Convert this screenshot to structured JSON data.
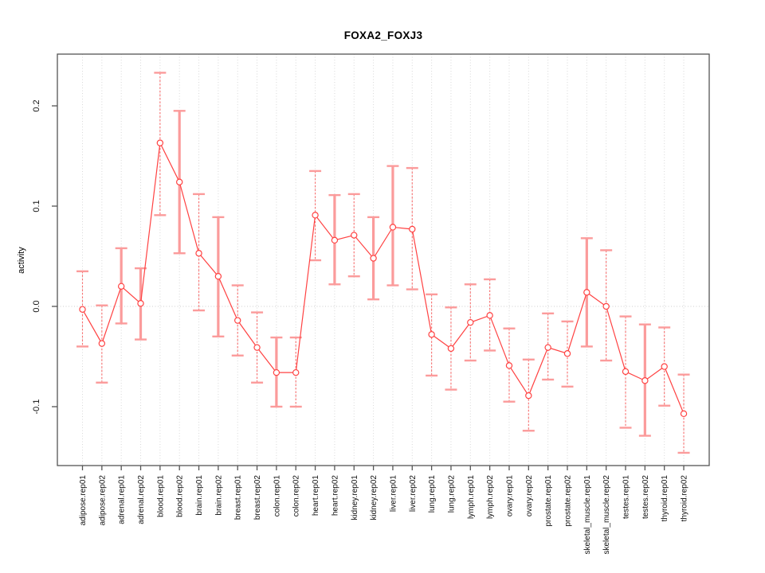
{
  "chart_data": {
    "type": "line",
    "title": "FOXA2_FOXJ3",
    "xlabel": "",
    "ylabel": "activity",
    "ylim": [
      -0.16,
      0.252
    ],
    "yticks": [
      -0.1,
      0.0,
      0.1,
      0.2
    ],
    "ytick_labels": [
      "-0.1",
      "0.0",
      "0.1",
      "0.2"
    ],
    "grid": "vertical dotted gridline per category; dotted horizontal line at y=0",
    "legend_position": "none",
    "marker": "open-circle",
    "colors": {
      "series": "#ff4242",
      "error_bar": "#fb9b9b",
      "error_stem_dashed": "#f87070",
      "gridline": "#d8d8d8",
      "zero_line": "#cccccc",
      "axis_box": "#555555",
      "text": "#111111"
    },
    "categories": [
      "adipose.rep01",
      "adipose.rep02",
      "adrenal.rep01",
      "adrenal.rep02",
      "blood.rep01",
      "blood.rep02",
      "brain.rep01",
      "brain.rep02",
      "breast.rep01",
      "breast.rep02",
      "colon.rep01",
      "colon.rep02",
      "heart.rep01",
      "heart.rep02",
      "kidney.rep01",
      "kidney.rep02",
      "liver.rep01",
      "liver.rep02",
      "lung.rep01",
      "lung.rep02",
      "lymph.rep01",
      "lymph.rep02",
      "ovary.rep01",
      "ovary.rep02",
      "prostate.rep01",
      "prostate.rep02",
      "skeletal_muscle.rep01",
      "skeletal_muscle.rep02",
      "testes.rep01",
      "testes.rep02",
      "thyroid.rep01",
      "thyroid.rep02"
    ],
    "series": [
      {
        "name": "activity",
        "values": [
          -0.003,
          -0.037,
          0.02,
          0.003,
          0.163,
          0.124,
          0.053,
          0.03,
          -0.014,
          -0.041,
          -0.066,
          -0.066,
          0.091,
          0.066,
          0.071,
          0.048,
          0.079,
          0.077,
          -0.028,
          -0.042,
          -0.016,
          -0.009,
          -0.059,
          -0.089,
          -0.041,
          -0.047,
          0.014,
          0.0,
          -0.065,
          -0.074,
          -0.06,
          -0.107
        ],
        "error_low": [
          -0.04,
          -0.076,
          -0.017,
          -0.033,
          0.091,
          0.053,
          -0.004,
          -0.03,
          -0.049,
          -0.076,
          -0.1,
          -0.1,
          0.046,
          0.022,
          0.03,
          0.007,
          0.021,
          0.017,
          -0.069,
          -0.083,
          -0.054,
          -0.044,
          -0.095,
          -0.124,
          -0.073,
          -0.08,
          -0.04,
          -0.054,
          -0.121,
          -0.129,
          -0.099,
          -0.146
        ],
        "error_high": [
          0.035,
          0.001,
          0.058,
          0.038,
          0.233,
          0.195,
          0.112,
          0.089,
          0.021,
          -0.006,
          -0.031,
          -0.031,
          0.135,
          0.111,
          0.112,
          0.089,
          0.14,
          0.138,
          0.012,
          -0.001,
          0.022,
          0.027,
          -0.022,
          -0.053,
          -0.007,
          -0.015,
          0.068,
          0.056,
          -0.01,
          -0.018,
          -0.021,
          -0.068
        ],
        "stem_styles": [
          "dashed",
          "dashed",
          "solid",
          "solid",
          "dashed",
          "solid",
          "dashed",
          "solid",
          "dashed",
          "dashed",
          "solid",
          "dashed",
          "dashed",
          "solid",
          "dashed",
          "solid",
          "solid",
          "dashed",
          "dashed",
          "dashed",
          "dashed",
          "dashed",
          "dashed",
          "dashed",
          "dashed",
          "dashed",
          "solid",
          "dashed",
          "dashed",
          "solid",
          "dashed",
          "dashed"
        ]
      }
    ]
  }
}
